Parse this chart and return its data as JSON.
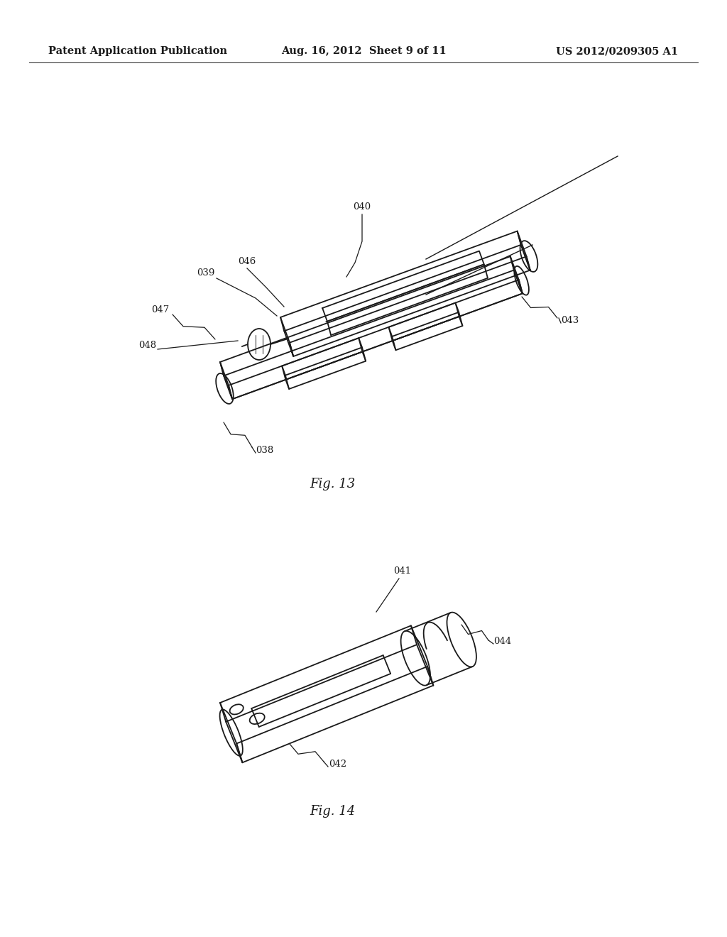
{
  "background_color": "#ffffff",
  "page_width": 10.24,
  "page_height": 13.2,
  "header_left": "Patent Application Publication",
  "header_center": "Aug. 16, 2012  Sheet 9 of 11",
  "header_right": "US 2012/0209305 A1",
  "header_fontsize": 10.5,
  "fig13_caption": "Fig. 13",
  "fig14_caption": "Fig. 14",
  "lc": "#1a1a1a",
  "lw": 1.3,
  "label_fs": 9.5,
  "caption_fs": 13
}
